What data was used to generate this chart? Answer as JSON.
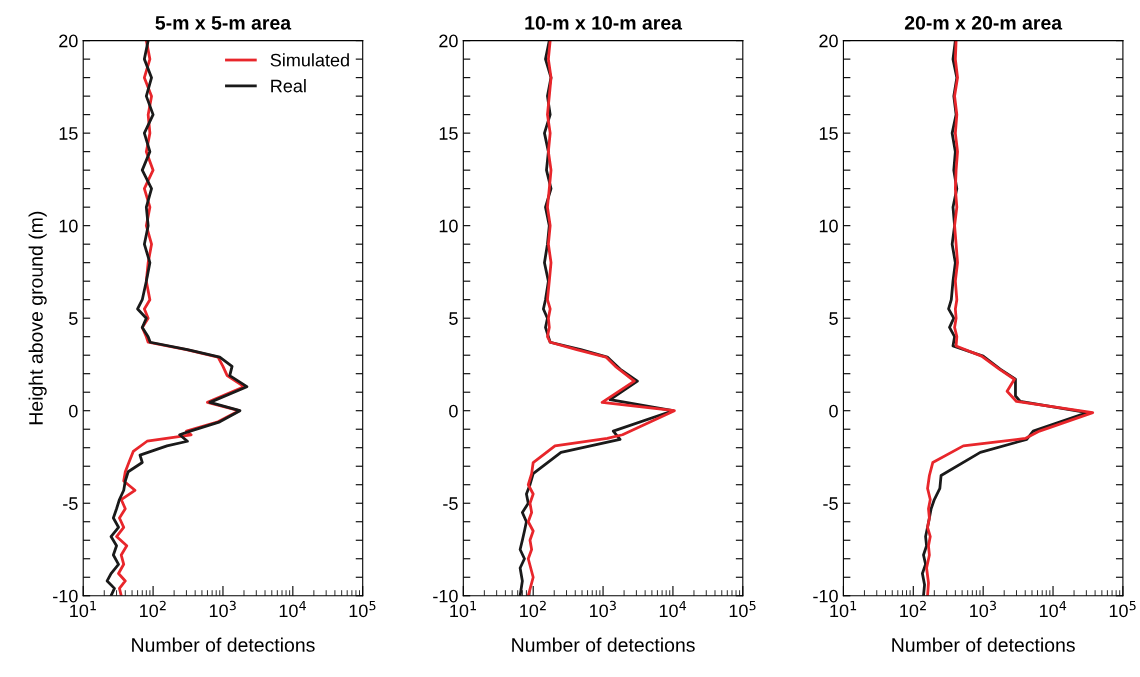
{
  "chart_data": [
    {
      "type": "line",
      "title": "5-m x 5-m area",
      "xlabel": "Number of detections",
      "ylabel": "Height above ground (m)",
      "log": "x",
      "legend": "top right",
      "grid": false,
      "xlim": [
        10,
        100000
      ],
      "xticks": [
        {
          "value": 10,
          "label": "10$^{1}$"
        },
        {
          "value": 100,
          "label": "10$^{2}$"
        },
        {
          "value": 1000,
          "label": "10$^{3}$"
        },
        {
          "value": 10000,
          "label": "10$^{4}$"
        },
        {
          "value": 100000,
          "label": "10$^{5}$"
        }
      ],
      "ylim": [
        -10,
        20
      ],
      "yticks": [
        -10,
        {
          "value": -9,
          "label": null
        },
        {
          "value": -8,
          "label": null
        },
        {
          "value": -7,
          "label": null
        },
        {
          "value": -6,
          "label": null
        },
        -5,
        {
          "value": -4,
          "label": null
        },
        {
          "value": -3,
          "label": null
        },
        {
          "value": -2,
          "label": null
        },
        {
          "value": -1,
          "label": null
        },
        0,
        {
          "value": 1,
          "label": null
        },
        {
          "value": 2,
          "label": null
        },
        {
          "value": 3,
          "label": null
        },
        {
          "value": 4,
          "label": null
        },
        5,
        {
          "value": 6,
          "label": null
        },
        {
          "value": 7,
          "label": null
        },
        {
          "value": 8,
          "label": null
        },
        {
          "value": 9,
          "label": null
        },
        10,
        {
          "value": 11,
          "label": null
        },
        {
          "value": 12,
          "label": null
        },
        {
          "value": 13,
          "label": null
        },
        {
          "value": 14,
          "label": null
        },
        15,
        {
          "value": 16,
          "label": null
        },
        {
          "value": 17,
          "label": null
        },
        {
          "value": 18,
          "label": null
        },
        {
          "value": 19,
          "label": null
        },
        20
      ],
      "series": [
        {
          "name": "Simulated",
          "color": "#e8262b",
          "x": [
            80,
            90,
            75,
            95,
            85,
            90,
            80,
            100,
            75,
            90,
            80,
            95,
            85,
            80,
            90,
            75,
            85,
            70,
            80,
            85,
            300,
            850,
            1000,
            1150,
            2000,
            600,
            1700,
            850,
            300,
            350,
            82,
            52,
            45,
            40,
            38,
            55,
            35,
            40,
            33,
            38,
            30,
            42,
            35,
            38,
            32,
            40,
            33,
            35
          ],
          "values": [
            20,
            19,
            18,
            17,
            16,
            15,
            14,
            13,
            12,
            11,
            10,
            9,
            8,
            7,
            6,
            5.5,
            5,
            4.5,
            4,
            3.7,
            3.3,
            2.9,
            2.4,
            1.9,
            1.3,
            0.45,
            0,
            -0.6,
            -1.1,
            -1.3,
            -1.65,
            -2.2,
            -2.8,
            -3.3,
            -3.8,
            -4.3,
            -4.8,
            -5.3,
            -5.8,
            -6.3,
            -6.8,
            -7.3,
            -7.8,
            -8.3,
            -8.8,
            -9.2,
            -9.6,
            -10
          ]
        },
        {
          "name": "Real",
          "color": "#1a1a1a",
          "x": [
            85,
            75,
            95,
            80,
            100,
            75,
            90,
            70,
            95,
            80,
            85,
            75,
            90,
            80,
            70,
            60,
            80,
            70,
            85,
            91,
            310,
            900,
            1350,
            1250,
            2200,
            650,
            1750,
            900,
            340,
            240,
            310,
            158,
            65,
            70,
            44,
            40,
            38,
            33,
            30,
            27,
            32,
            25,
            30,
            27,
            32,
            25,
            22,
            28,
            25
          ],
          "values": [
            20,
            19,
            18,
            17,
            16,
            15,
            14,
            13,
            12,
            11,
            10,
            9,
            8,
            7,
            6,
            5.5,
            5,
            4.5,
            4,
            3.7,
            3.3,
            2.9,
            2.4,
            1.9,
            1.3,
            0.45,
            0,
            -0.6,
            -1.1,
            -1.3,
            -1.65,
            -1.9,
            -2.4,
            -2.8,
            -3.3,
            -3.8,
            -4.3,
            -4.8,
            -5.3,
            -5.8,
            -6.3,
            -6.8,
            -7.3,
            -7.8,
            -8.3,
            -8.8,
            -9.2,
            -9.6,
            -10
          ]
        }
      ]
    },
    {
      "type": "line",
      "title": "10-m x 10-m area",
      "xlabel": "Number of detections",
      "log": "x",
      "grid": false,
      "xlim": [
        10,
        100000
      ],
      "xticks": [
        {
          "value": 10,
          "label": "10$^{1}$"
        },
        {
          "value": 100,
          "label": "10$^{2}$"
        },
        {
          "value": 1000,
          "label": "10$^{3}$"
        },
        {
          "value": 10000,
          "label": "10$^{4}$"
        },
        {
          "value": 100000,
          "label": "10$^{5}$"
        }
      ],
      "ylim": [
        -10,
        20
      ],
      "yticks": [
        -10,
        {
          "value": -9,
          "label": null
        },
        {
          "value": -8,
          "label": null
        },
        {
          "value": -7,
          "label": null
        },
        {
          "value": -6,
          "label": null
        },
        -5,
        {
          "value": -4,
          "label": null
        },
        {
          "value": -3,
          "label": null
        },
        {
          "value": -2,
          "label": null
        },
        {
          "value": -1,
          "label": null
        },
        0,
        {
          "value": 1,
          "label": null
        },
        {
          "value": 2,
          "label": null
        },
        {
          "value": 3,
          "label": null
        },
        {
          "value": 4,
          "label": null
        },
        5,
        {
          "value": 6,
          "label": null
        },
        {
          "value": 7,
          "label": null
        },
        {
          "value": 8,
          "label": null
        },
        {
          "value": 9,
          "label": null
        },
        10,
        {
          "value": 11,
          "label": null
        },
        {
          "value": 12,
          "label": null
        },
        {
          "value": 13,
          "label": null
        },
        {
          "value": 14,
          "label": null
        },
        15,
        {
          "value": 16,
          "label": null
        },
        {
          "value": 17,
          "label": null
        },
        {
          "value": 18,
          "label": null
        },
        {
          "value": 19,
          "label": null
        },
        20
      ],
      "series": [
        {
          "color": "#1a1a1a",
          "x": [
            170,
            150,
            180,
            160,
            175,
            145,
            165,
            155,
            180,
            150,
            170,
            160,
            145,
            165,
            150,
            140,
            160,
            150,
            165,
            175,
            480,
            1150,
            1750,
            3100,
            1260,
            10000,
            1400,
            1750,
            250,
            100,
            90,
            80,
            85,
            70,
            80,
            75,
            70,
            65,
            75,
            65,
            70,
            65
          ],
          "values": [
            20,
            19,
            18,
            17,
            16,
            15,
            14,
            13,
            12,
            11,
            10,
            9,
            8,
            7,
            6,
            5.5,
            5,
            4.5,
            4,
            3.7,
            3.3,
            2.9,
            2.25,
            1.6,
            0.6,
            0,
            -1.1,
            -1.55,
            -2.25,
            -3.4,
            -4,
            -4.5,
            -5,
            -5.5,
            -6,
            -6.5,
            -7,
            -7.5,
            -8,
            -8.5,
            -9.2,
            -10
          ]
        },
        {
          "color": "#e8262b",
          "x": [
            175,
            165,
            180,
            170,
            160,
            175,
            165,
            180,
            170,
            160,
            175,
            165,
            180,
            170,
            160,
            175,
            165,
            170,
            160,
            175,
            420,
            1100,
            1500,
            2800,
            970,
            10500,
            1900,
            1150,
            205,
            100,
            95,
            85,
            100,
            90,
            95,
            85,
            100,
            90,
            95,
            85,
            100,
            85
          ],
          "values": [
            20,
            19,
            18,
            17,
            16,
            15,
            14,
            13,
            12,
            11,
            10,
            9,
            8,
            7,
            6,
            5.5,
            5,
            4.5,
            4,
            3.7,
            3.3,
            2.9,
            2.4,
            1.6,
            0.45,
            0,
            -1.3,
            -1.5,
            -1.9,
            -2.8,
            -3.4,
            -4,
            -4.5,
            -5,
            -5.5,
            -6,
            -6.5,
            -7,
            -7.5,
            -8,
            -9,
            -10
          ]
        }
      ]
    },
    {
      "type": "line",
      "title": "20-m x 20-m area",
      "xlabel": "Number of detections",
      "log": "x",
      "grid": false,
      "xlim": [
        10,
        100000
      ],
      "xticks": [
        {
          "value": 10,
          "label": "10$^{1}$"
        },
        {
          "value": 100,
          "label": "10$^{2}$"
        },
        {
          "value": 1000,
          "label": "10$^{3}$"
        },
        {
          "value": 10000,
          "label": "10$^{4}$"
        },
        {
          "value": 100000,
          "label": "10$^{5}$"
        }
      ],
      "ylim": [
        -10,
        20
      ],
      "yticks": [
        -10,
        {
          "value": -9,
          "label": null
        },
        {
          "value": -8,
          "label": null
        },
        {
          "value": -7,
          "label": null
        },
        {
          "value": -6,
          "label": null
        },
        -5,
        {
          "value": -4,
          "label": null
        },
        {
          "value": -3,
          "label": null
        },
        {
          "value": -2,
          "label": null
        },
        {
          "value": -1,
          "label": null
        },
        0,
        {
          "value": 1,
          "label": null
        },
        {
          "value": 2,
          "label": null
        },
        {
          "value": 3,
          "label": null
        },
        {
          "value": 4,
          "label": null
        },
        5,
        {
          "value": 6,
          "label": null
        },
        {
          "value": 7,
          "label": null
        },
        {
          "value": 8,
          "label": null
        },
        {
          "value": 9,
          "label": null
        },
        10,
        {
          "value": 11,
          "label": null
        },
        {
          "value": 12,
          "label": null
        },
        {
          "value": 13,
          "label": null
        },
        {
          "value": 14,
          "label": null
        },
        15,
        {
          "value": 16,
          "label": null
        },
        {
          "value": 17,
          "label": null
        },
        {
          "value": 18,
          "label": null
        },
        {
          "value": 19,
          "label": null
        },
        20
      ],
      "series": [
        {
          "color": "#1a1a1a",
          "x": [
            400,
            370,
            420,
            380,
            410,
            360,
            400,
            380,
            420,
            370,
            390,
            360,
            400,
            370,
            350,
            320,
            380,
            330,
            390,
            370,
            1000,
            1750,
            2900,
            2900,
            3400,
            31000,
            5200,
            4200,
            910,
            250,
            240,
            200,
            180,
            170,
            160,
            150,
            155,
            140,
            150,
            135,
            145,
            140
          ],
          "values": [
            20,
            19,
            18,
            17,
            16,
            15,
            14,
            13,
            12,
            11,
            10,
            9,
            8,
            7,
            6,
            5.5,
            5,
            4.5,
            4,
            3.5,
            2.95,
            2.25,
            1.7,
            0.8,
            0.5,
            -0.1,
            -1.1,
            -1.55,
            -2.25,
            -3.5,
            -4.2,
            -4.8,
            -5.3,
            -5.8,
            -6.3,
            -6.8,
            -7.3,
            -7.8,
            -8.3,
            -8.8,
            -9.4,
            -10
          ]
        },
        {
          "color": "#e8262b",
          "x": [
            410,
            400,
            430,
            390,
            420,
            400,
            430,
            410,
            400,
            420,
            390,
            410,
            430,
            400,
            420,
            400,
            410,
            390,
            420,
            410,
            950,
            1700,
            2800,
            2200,
            3000,
            37000,
            6400,
            4000,
            520,
            190,
            170,
            160,
            175,
            165,
            170,
            160,
            175,
            165,
            170,
            155,
            165,
            160
          ],
          "values": [
            20,
            19,
            18,
            17,
            16,
            15,
            14,
            13,
            12,
            11,
            10,
            9,
            8,
            7,
            6,
            5.5,
            5,
            4.5,
            4,
            3.5,
            2.95,
            2.25,
            1.7,
            1.05,
            0.5,
            -0.1,
            -1.1,
            -1.5,
            -1.9,
            -2.8,
            -3.5,
            -4.2,
            -4.8,
            -5.3,
            -5.8,
            -6.3,
            -6.8,
            -7.3,
            -7.8,
            -8.5,
            -9.3,
            -10
          ]
        }
      ]
    }
  ]
}
